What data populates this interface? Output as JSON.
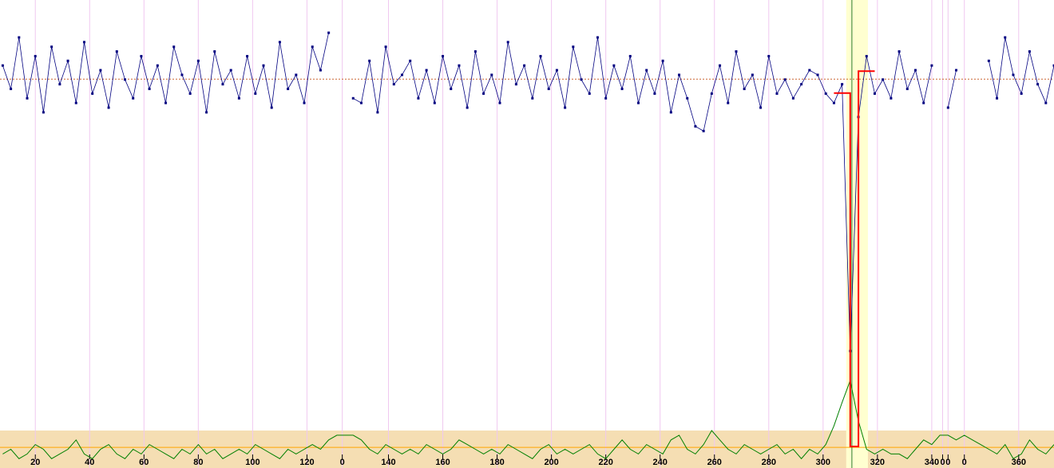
{
  "chart_data": {
    "type": "line",
    "xlim": [
      7,
      395
    ],
    "ylim": [
      0,
      100
    ],
    "grid": true,
    "grid_color": "#f0c8f0",
    "xticks": [
      20,
      40,
      60,
      80,
      100,
      120,
      {
        "value": 133,
        "label": "0"
      },
      {
        "value": 150,
        "label": "140"
      },
      {
        "value": 170,
        "label": "160"
      },
      {
        "value": 190,
        "label": "180"
      },
      {
        "value": 210,
        "label": "200"
      },
      {
        "value": 230,
        "label": "220"
      },
      {
        "value": 250,
        "label": "240"
      },
      {
        "value": 270,
        "label": "260"
      },
      {
        "value": 290,
        "label": "280"
      },
      {
        "value": 310,
        "label": "300"
      },
      {
        "value": 330,
        "label": "320"
      },
      {
        "value": 350,
        "label": "340"
      },
      {
        "value": 354,
        "label": "0"
      },
      {
        "value": 356,
        "label": "0"
      },
      {
        "value": 362,
        "label": "0"
      },
      {
        "value": 382,
        "label": "360"
      }
    ],
    "highlight": {
      "x": [
        318.5,
        326.5
      ],
      "color": "#ffffd0"
    },
    "cursor_x": 320.6,
    "reference_lines": [
      {
        "value": 83.1,
        "color": "#cc6633"
      },
      {
        "value": 4.4,
        "color": "#ffa500"
      }
    ],
    "x": [
      8,
      11,
      14,
      17,
      20,
      23,
      26,
      29,
      32,
      35,
      38,
      41,
      44,
      47,
      50,
      53,
      56,
      59,
      62,
      65,
      68,
      71,
      74,
      77,
      80,
      83,
      86,
      89,
      92,
      95,
      98,
      101,
      104,
      107,
      110,
      113,
      116,
      119,
      122,
      125,
      128,
      131,
      134,
      137,
      140,
      143,
      146,
      149,
      152,
      155,
      158,
      161,
      164,
      167,
      170,
      173,
      176,
      179,
      182,
      185,
      188,
      191,
      194,
      197,
      200,
      203,
      206,
      209,
      212,
      215,
      218,
      221,
      224,
      227,
      230,
      233,
      236,
      239,
      242,
      245,
      248,
      251,
      254,
      257,
      260,
      263,
      266,
      269,
      272,
      275,
      278,
      281,
      284,
      287,
      290,
      293,
      296,
      299,
      302,
      305,
      308,
      311,
      314,
      317,
      320,
      323,
      326,
      329,
      332,
      335,
      338,
      341,
      344,
      347,
      350,
      353,
      356,
      359,
      362,
      365,
      368,
      371,
      374,
      377,
      380,
      383,
      386,
      389,
      392,
      395
    ],
    "series": [
      {
        "color": "#000080",
        "values": [
          86,
          81,
          92,
          79,
          88,
          76,
          90,
          82,
          87,
          78,
          91,
          80,
          85,
          77,
          89,
          83,
          79,
          88,
          81,
          86,
          78,
          90,
          84,
          80,
          87,
          76,
          89,
          82,
          85,
          79,
          88,
          80,
          86,
          77,
          91,
          81,
          84,
          78,
          90,
          85,
          93,
          null,
          null,
          79,
          78,
          87,
          76,
          90,
          82,
          84,
          87,
          79,
          85,
          78,
          88,
          81,
          86,
          77,
          89,
          80,
          84,
          78,
          91,
          82,
          86,
          79,
          88,
          81,
          85,
          77,
          90,
          83,
          80,
          92,
          79,
          86,
          81,
          88,
          78,
          85,
          80,
          87,
          76,
          84,
          79,
          73,
          72,
          80,
          86,
          78,
          89,
          81,
          84,
          77,
          88,
          80,
          83,
          79,
          82,
          85,
          84,
          80,
          78,
          82,
          25,
          75,
          88,
          80,
          83,
          79,
          89,
          81,
          85,
          78,
          86,
          null,
          77,
          85,
          null,
          null,
          null,
          87,
          79,
          92,
          84,
          80,
          89,
          82,
          78,
          86
        ]
      },
      {
        "color": "#008000",
        "values": [
          3,
          4,
          2,
          3,
          5,
          4,
          2,
          3,
          4,
          6,
          3,
          2,
          4,
          5,
          3,
          2,
          4,
          3,
          5,
          4,
          3,
          2,
          4,
          3,
          5,
          3,
          4,
          2,
          3,
          4,
          3,
          5,
          4,
          3,
          2,
          4,
          3,
          4,
          5,
          4,
          6,
          7,
          7,
          7,
          6,
          4,
          3,
          5,
          4,
          3,
          4,
          3,
          5,
          4,
          3,
          4,
          6,
          5,
          4,
          3,
          4,
          3,
          5,
          4,
          3,
          2,
          4,
          5,
          3,
          4,
          3,
          4,
          5,
          3,
          2,
          4,
          6,
          4,
          3,
          5,
          4,
          3,
          6,
          7,
          4,
          3,
          5,
          8,
          6,
          4,
          3,
          5,
          4,
          3,
          4,
          5,
          3,
          4,
          2,
          4,
          3,
          5,
          9,
          14,
          18.7,
          10,
          4,
          3,
          4,
          3,
          3,
          2,
          4,
          6,
          5,
          7,
          7,
          6,
          7,
          6,
          5,
          4,
          3,
          5,
          2,
          3,
          6,
          4,
          3,
          5
        ]
      }
    ],
    "step": {
      "color": "#ff0000",
      "x": [
        314,
        320,
        320,
        323,
        323,
        329
      ],
      "values": [
        80.1,
        80.1,
        4.6,
        4.6,
        84.8,
        84.8
      ]
    }
  }
}
